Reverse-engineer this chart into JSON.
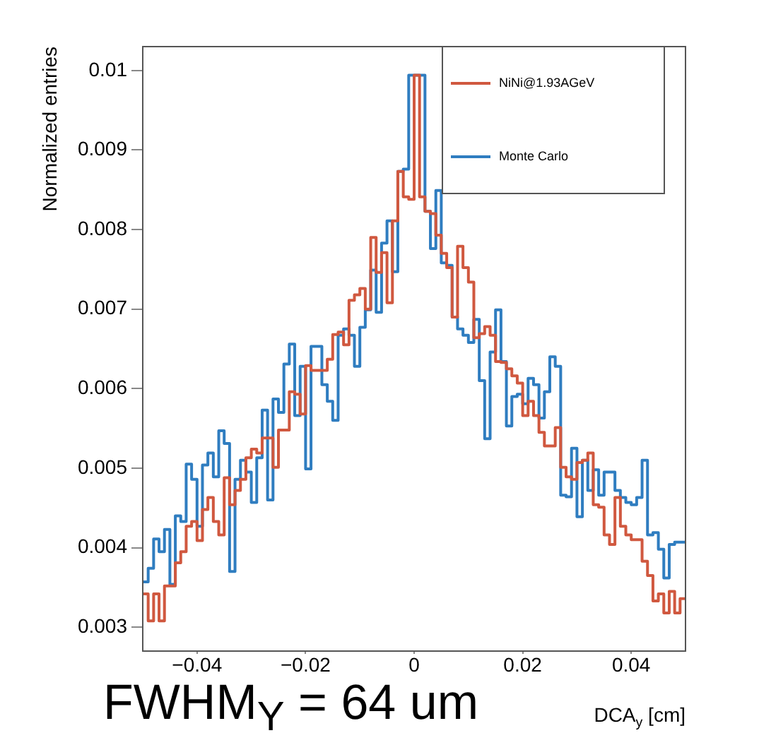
{
  "chart_data": {
    "type": "histogram",
    "xlabel": "DCA$_{y}$ [cm]",
    "ylabel": "Normalized entries",
    "annotations": [
      "FWHM$_{Y}$ = 64 um"
    ],
    "xlim": [
      -0.05,
      0.05
    ],
    "ylim": [
      0.0027,
      0.0103
    ],
    "xticks": [
      {
        "value": -0.04,
        "label": "−0.04"
      },
      {
        "value": -0.02,
        "label": "−0.02"
      },
      0,
      0.02,
      0.04
    ],
    "yticks": [
      0.003,
      0.004,
      0.005,
      0.006,
      0.007,
      0.008,
      0.009,
      0.01
    ],
    "legend": "top right",
    "bins": [
      -0.05,
      -0.049,
      -0.048,
      -0.047,
      -0.046,
      -0.045,
      -0.044,
      -0.043,
      -0.042,
      -0.041,
      -0.04,
      -0.039,
      -0.038,
      -0.037,
      -0.036,
      -0.035,
      -0.034,
      -0.033,
      -0.032,
      -0.031,
      -0.03,
      -0.029,
      -0.028,
      -0.027,
      -0.026,
      -0.025,
      -0.024,
      -0.023,
      -0.022,
      -0.021,
      -0.02,
      -0.019,
      -0.018,
      -0.017,
      -0.016,
      -0.015,
      -0.014,
      -0.013,
      -0.012,
      -0.011,
      -0.01,
      -0.009,
      -0.008,
      -0.007,
      -0.006,
      -0.005,
      -0.004,
      -0.003,
      -0.002,
      -0.001,
      0,
      0.001,
      0.002,
      0.003,
      0.004,
      0.005,
      0.006,
      0.007,
      0.008,
      0.009,
      0.01,
      0.011,
      0.012,
      0.013,
      0.014,
      0.015,
      0.016,
      0.017,
      0.018,
      0.019,
      0.02,
      0.021,
      0.022,
      0.023,
      0.024,
      0.025,
      0.026,
      0.027,
      0.028,
      0.029,
      0.03,
      0.031,
      0.032,
      0.033,
      0.034,
      0.035,
      0.036,
      0.037,
      0.038,
      0.039,
      0.04,
      0.041,
      0.042,
      0.043,
      0.044,
      0.045,
      0.046,
      0.047,
      0.048,
      0.049,
      0.05
    ],
    "series": [
      {
        "name": "NiNi@1.93AGeV",
        "color": "#d0583f",
        "values": [
          0.00342,
          0.00308,
          0.00342,
          0.00308,
          0.00352,
          0.00352,
          0.00381,
          0.00395,
          0.00427,
          0.00433,
          0.00409,
          0.00448,
          0.00463,
          0.00433,
          0.00416,
          0.00488,
          0.00454,
          0.00472,
          0.00486,
          0.00513,
          0.00524,
          0.00519,
          0.00538,
          0.00538,
          0.00501,
          0.00548,
          0.00548,
          0.00596,
          0.00593,
          0.00568,
          0.00629,
          0.00623,
          0.00623,
          0.00623,
          0.00637,
          0.00668,
          0.00671,
          0.00655,
          0.00711,
          0.00718,
          0.00726,
          0.007,
          0.0079,
          0.00746,
          0.00771,
          0.00708,
          0.00811,
          0.00873,
          0.00841,
          0.00838,
          0.00994,
          0.00841,
          0.00823,
          0.0082,
          0.00793,
          0.0077,
          0.00752,
          0.0069,
          0.00779,
          0.00752,
          0.00734,
          0.00664,
          0.00669,
          0.00678,
          0.00667,
          0.00634,
          0.00633,
          0.00625,
          0.00616,
          0.00607,
          0.00566,
          0.00584,
          0.00566,
          0.00545,
          0.00528,
          0.00528,
          0.00551,
          0.00501,
          0.00489,
          0.00486,
          0.00507,
          0.0051,
          0.00519,
          0.00454,
          0.00451,
          0.00416,
          0.00404,
          0.00463,
          0.00427,
          0.00416,
          0.0041,
          0.0041,
          0.00383,
          0.00365,
          0.00333,
          0.00342,
          0.00318,
          0.00345,
          0.00318,
          0.00336
        ]
      },
      {
        "name": "Monte Carlo",
        "color": "#2f7dc0",
        "values": [
          0.00357,
          0.00374,
          0.00411,
          0.00395,
          0.00423,
          0.00354,
          0.0044,
          0.00433,
          0.00505,
          0.00486,
          0.00427,
          0.00504,
          0.00519,
          0.00489,
          0.00547,
          0.00531,
          0.0037,
          0.00486,
          0.0051,
          0.00495,
          0.00457,
          0.00513,
          0.00573,
          0.0046,
          0.00587,
          0.0057,
          0.00631,
          0.00656,
          0.00566,
          0.00628,
          0.00499,
          0.00653,
          0.00653,
          0.00605,
          0.00584,
          0.0056,
          0.00667,
          0.00675,
          0.00667,
          0.00628,
          0.00677,
          0.00699,
          0.00749,
          0.00696,
          0.00783,
          0.00811,
          0.00747,
          0.00873,
          0.00876,
          0.00994,
          0.00994,
          0.00994,
          0.00823,
          0.00776,
          0.00849,
          0.00758,
          0.00755,
          0.0069,
          0.00675,
          0.00667,
          0.00658,
          0.00687,
          0.0061,
          0.00537,
          0.00646,
          0.00699,
          0.00634,
          0.00553,
          0.0059,
          0.00593,
          0.00581,
          0.00613,
          0.00605,
          0.00563,
          0.00596,
          0.0064,
          0.00628,
          0.00466,
          0.00464,
          0.00525,
          0.00439,
          0.0051,
          0.00472,
          0.00498,
          0.00466,
          0.00495,
          0.00495,
          0.00472,
          0.00463,
          0.00457,
          0.00454,
          0.00463,
          0.0051,
          0.00416,
          0.00419,
          0.00398,
          0.00362,
          0.00404,
          0.00407,
          0.00407
        ]
      }
    ]
  }
}
